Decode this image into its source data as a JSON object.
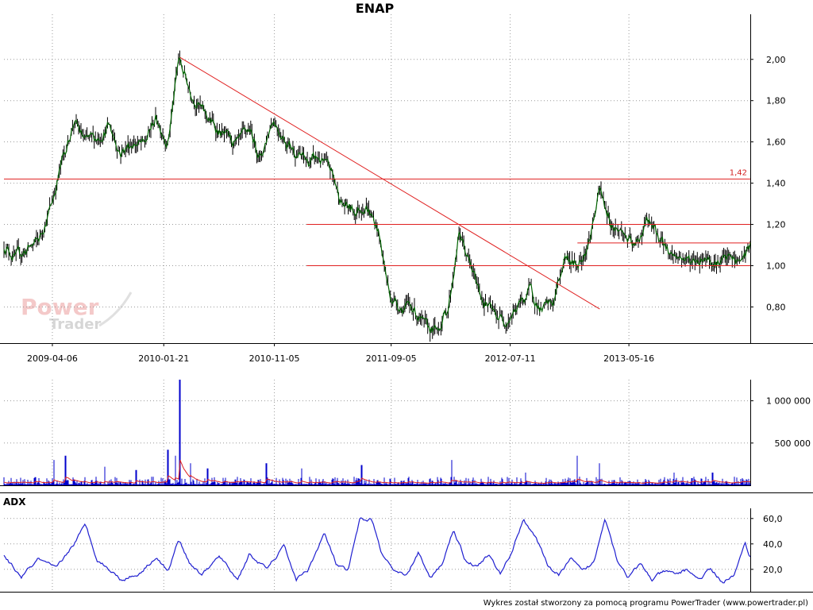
{
  "footer": "Wykres został stworzony za pomocą programu PowerTrader (www.powertrader.pl)",
  "logo": {
    "word1": "Power",
    "word2": "Trader"
  },
  "colors": {
    "price_line": "#006400",
    "candle": "#000000",
    "trend": "#e02020",
    "volume": "#0000cc",
    "volume_avg": "#e02020",
    "adx": "#1f1fd0",
    "grid": "#9a9a9a"
  },
  "chart_data": [
    {
      "id": "price",
      "type": "line",
      "title": "ENAP",
      "x_tick_labels": [
        "2009-04-06",
        "2010-01-21",
        "2010-11-05",
        "2011-09-05",
        "2012-07-11",
        "2013-05-16"
      ],
      "y_tick_labels": [
        "0,80",
        "1,00",
        "1,20",
        "1,40",
        "1,60",
        "1,80",
        "2,00"
      ],
      "y_ticks": [
        0.8,
        1.0,
        1.2,
        1.4,
        1.6,
        1.8,
        2.0
      ],
      "ylim": [
        0.64,
        2.18
      ],
      "x_range": [
        "2008-12-01",
        "2014-03-28"
      ],
      "series": [
        {
          "x": [
            "2008-12-01",
            "2009-01-01",
            "2009-02-01",
            "2009-03-01",
            "2009-04-01",
            "2009-05-01",
            "2009-06-01",
            "2009-07-01",
            "2009-08-01",
            "2009-09-01",
            "2009-10-01",
            "2009-11-01",
            "2009-12-01",
            "2010-01-01",
            "2010-02-01",
            "2010-03-01",
            "2010-04-01",
            "2010-05-01",
            "2010-06-01",
            "2010-07-01",
            "2010-08-01",
            "2010-09-01",
            "2010-10-01",
            "2010-11-01",
            "2010-12-01",
            "2011-01-01",
            "2011-02-01",
            "2011-03-01",
            "2011-04-01",
            "2011-05-01",
            "2011-06-01",
            "2011-07-01",
            "2011-08-01",
            "2011-09-01",
            "2011-10-01",
            "2011-11-01",
            "2011-12-01",
            "2012-01-01",
            "2012-02-01",
            "2012-03-01",
            "2012-04-01",
            "2012-05-01",
            "2012-06-01",
            "2012-07-01",
            "2012-08-01",
            "2012-09-01",
            "2012-10-01",
            "2012-11-01",
            "2012-12-01",
            "2013-01-01",
            "2013-02-01",
            "2013-03-01",
            "2013-04-01",
            "2013-05-01",
            "2013-06-01",
            "2013-07-01",
            "2013-08-01",
            "2013-09-01",
            "2013-10-01",
            "2013-11-01",
            "2013-12-01",
            "2014-01-01",
            "2014-02-01",
            "2014-03-01",
            "2014-03-28"
          ],
          "y": [
            1.1,
            1.04,
            1.08,
            1.12,
            1.28,
            1.5,
            1.7,
            1.6,
            1.62,
            1.68,
            1.55,
            1.6,
            1.58,
            1.72,
            1.6,
            2.0,
            1.85,
            1.75,
            1.68,
            1.62,
            1.58,
            1.66,
            1.52,
            1.72,
            1.62,
            1.55,
            1.5,
            1.52,
            1.46,
            1.3,
            1.26,
            1.3,
            1.18,
            0.86,
            0.8,
            0.8,
            0.7,
            0.68,
            0.8,
            1.16,
            0.98,
            0.84,
            0.76,
            0.74,
            0.8,
            0.88,
            0.78,
            0.82,
            1.05,
            1.0,
            1.12,
            1.36,
            1.2,
            1.16,
            1.08,
            1.22,
            1.14,
            1.06,
            1.04,
            1.02,
            1.05,
            1.02,
            1.03,
            1.02,
            1.1
          ]
        }
      ],
      "annotations": {
        "horizontal_levels": [
          {
            "value": 1.42,
            "label": "1,42",
            "x_start": "2008-12-01",
            "x_end": "2014-03-28"
          },
          {
            "value": 1.2,
            "x_start": "2011-01-28",
            "x_end": "2014-03-28"
          },
          {
            "value": 1.11,
            "x_start": "2013-01-02",
            "x_end": "2014-03-28"
          },
          {
            "value": 1.0,
            "x_start": "2011-01-28",
            "x_end": "2014-03-28"
          }
        ],
        "trend_line": {
          "from": [
            "2010-03-04",
            2.01
          ],
          "to": [
            "2013-03-01",
            0.79
          ]
        }
      }
    },
    {
      "id": "volume",
      "type": "bar",
      "title": "",
      "y_tick_labels": [
        "500 000",
        "1 000 000"
      ],
      "y_ticks": [
        500000,
        1000000
      ],
      "ylim": [
        0,
        1250000
      ],
      "x_range": [
        "2008-12-01",
        "2014-03-28"
      ],
      "peak": {
        "x": "2010-03-04",
        "value": 1260000
      },
      "spikes": [
        {
          "x": "2009-04-10",
          "value": 300000
        },
        {
          "x": "2009-05-10",
          "value": 350000
        },
        {
          "x": "2009-08-20",
          "value": 220000
        },
        {
          "x": "2009-11-10",
          "value": 180000
        },
        {
          "x": "2010-02-01",
          "value": 420000
        },
        {
          "x": "2010-02-20",
          "value": 350000
        },
        {
          "x": "2010-04-01",
          "value": 260000
        },
        {
          "x": "2010-05-15",
          "value": 200000
        },
        {
          "x": "2010-10-15",
          "value": 260000
        },
        {
          "x": "2011-01-15",
          "value": 200000
        },
        {
          "x": "2011-06-20",
          "value": 240000
        },
        {
          "x": "2012-02-10",
          "value": 300000
        },
        {
          "x": "2012-08-20",
          "value": 150000
        },
        {
          "x": "2013-01-02",
          "value": 350000
        },
        {
          "x": "2013-03-01",
          "value": 260000
        },
        {
          "x": "2013-09-10",
          "value": 150000
        },
        {
          "x": "2013-12-20",
          "value": 150000
        }
      ]
    },
    {
      "id": "adx",
      "type": "line",
      "title": "ADX",
      "y_tick_labels": [
        "20,0",
        "40,0",
        "60,0"
      ],
      "y_ticks": [
        20,
        40,
        60
      ],
      "ylim": [
        3,
        68
      ],
      "x_range": [
        "2008-12-01",
        "2014-03-28"
      ],
      "series": [
        {
          "name": "ADX",
          "x": [
            "2008-12-01",
            "2009-01-15",
            "2009-03-01",
            "2009-04-15",
            "2009-06-01",
            "2009-07-01",
            "2009-08-01",
            "2009-09-01",
            "2009-10-01",
            "2009-11-15",
            "2010-01-01",
            "2010-02-01",
            "2010-03-01",
            "2010-04-01",
            "2010-05-01",
            "2010-06-15",
            "2010-08-01",
            "2010-09-01",
            "2010-10-15",
            "2010-12-01",
            "2011-01-01",
            "2011-02-01",
            "2011-03-15",
            "2011-04-15",
            "2011-05-15",
            "2011-06-15",
            "2011-07-15",
            "2011-08-15",
            "2011-09-15",
            "2011-10-15",
            "2011-11-15",
            "2011-12-15",
            "2012-01-15",
            "2012-02-15",
            "2012-03-15",
            "2012-04-15",
            "2012-05-15",
            "2012-06-15",
            "2012-07-15",
            "2012-08-15",
            "2012-09-15",
            "2012-10-15",
            "2012-11-15",
            "2012-12-15",
            "2013-01-15",
            "2013-02-15",
            "2013-03-15",
            "2013-04-15",
            "2013-05-15",
            "2013-06-15",
            "2013-07-15",
            "2013-08-15",
            "2013-09-15",
            "2013-10-15",
            "2013-11-15",
            "2013-12-15",
            "2014-01-15",
            "2014-02-15",
            "2014-03-15",
            "2014-03-28"
          ],
          "values": [
            30,
            14,
            28,
            20,
            40,
            55,
            28,
            20,
            12,
            16,
            30,
            18,
            44,
            24,
            16,
            30,
            12,
            32,
            20,
            38,
            12,
            20,
            48,
            24,
            18,
            58,
            60,
            30,
            18,
            14,
            34,
            12,
            24,
            52,
            28,
            22,
            32,
            16,
            34,
            60,
            45,
            24,
            15,
            28,
            18,
            26,
            62,
            28,
            14,
            24,
            12,
            18,
            16,
            20,
            12,
            20,
            10,
            16,
            40,
            30
          ]
        }
      ]
    }
  ]
}
